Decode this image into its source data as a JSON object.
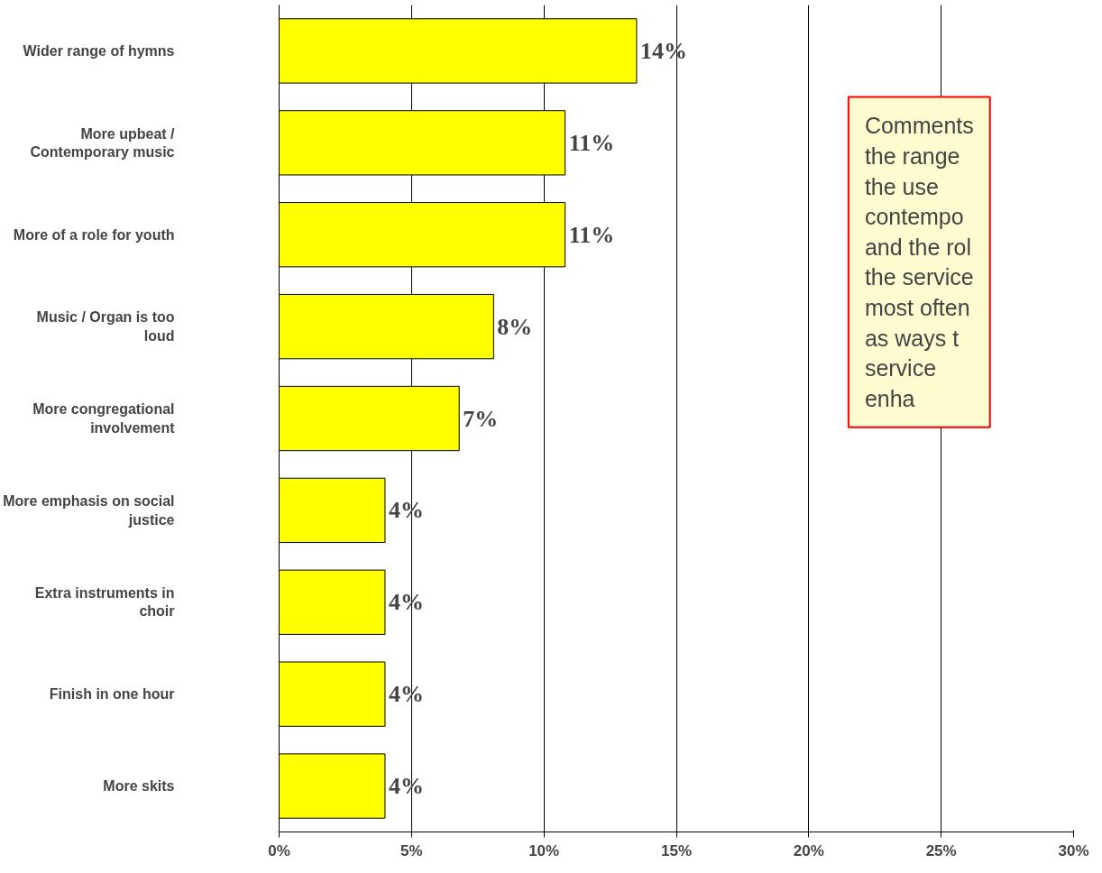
{
  "chart_data": {
    "type": "bar",
    "orientation": "horizontal",
    "categories": [
      "Wider range of hymns",
      "More upbeat / Contemporary music",
      "More of a role for youth",
      "Music / Organ is too loud",
      "More congregational involvement",
      "More emphasis on social justice",
      "Extra instruments in choir",
      "Finish in one hour",
      "More skits"
    ],
    "values": [
      13.5,
      10.8,
      10.8,
      8.1,
      6.8,
      4.0,
      4.0,
      4.0,
      4.0
    ],
    "value_labels": [
      "14%",
      "11%",
      "11%",
      "8%",
      "7%",
      "4%",
      "4%",
      "4%",
      "4%"
    ],
    "color": "#ffff00",
    "xlim": [
      0,
      30
    ],
    "xticks": [
      {
        "value": 0,
        "label": "0%"
      },
      {
        "value": 5,
        "label": "5%"
      },
      {
        "value": 10,
        "label": "10%"
      },
      {
        "value": 15,
        "label": "15%"
      },
      {
        "value": 20,
        "label": "20%"
      },
      {
        "value": 25,
        "label": "25%"
      },
      {
        "value": 30,
        "label": "30%"
      }
    ],
    "grid": "x",
    "annotations": [
      "Comments\nthe range\nthe use\ncontempo\nand the rol\nthe service\nmost often\nas ways t\nservice\nenha"
    ]
  }
}
